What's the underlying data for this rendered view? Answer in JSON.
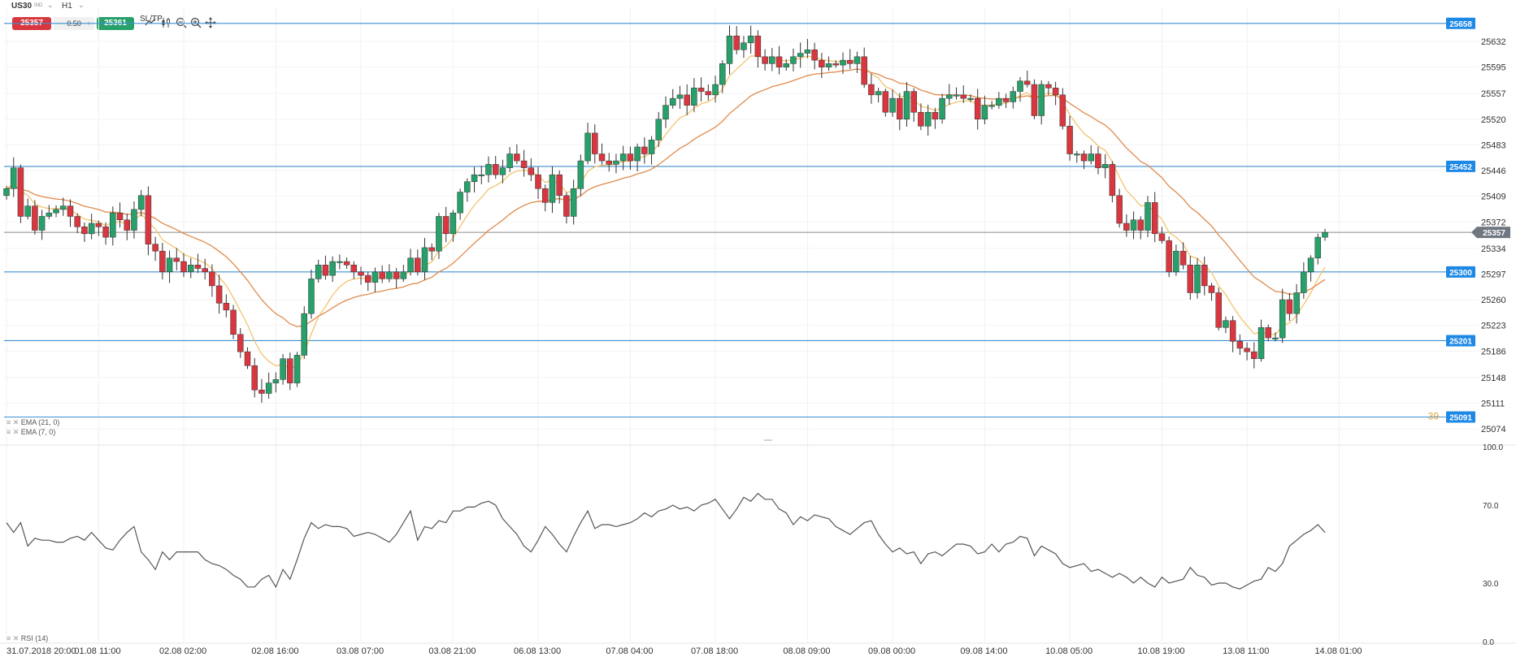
{
  "toolbar": {
    "symbol": "US30",
    "symbol_tag": "IND",
    "timeframe": "H1",
    "sell_price": "25357",
    "volume_minus": "−",
    "volume": "0.50",
    "volume_plus": "+",
    "buy_price": "25361",
    "sltp": "SL/TP",
    "icons": [
      "line-chart-icon",
      "candlestick-icon",
      "zoom-out-icon",
      "zoom-in-icon",
      "crosshair-move-icon"
    ]
  },
  "indicators": {
    "ema21": "EMA (21, 0)",
    "ema7": "EMA (7, 0)",
    "rsi": "RSI (14)"
  },
  "colors": {
    "bull": "#27a06a",
    "bear": "#d9373f",
    "ema_fast": "#f2c46e",
    "ema_slow": "#e08a4c",
    "level_line": "#3d8fd1",
    "level_tag": "#1e88e5",
    "price_tag": "#6f7780",
    "rsi_line": "#555555"
  },
  "chart_data": {
    "type": "candlestick",
    "instrument": "US30",
    "timeframe": "H1",
    "current_price": 25357,
    "price_axis_ticks": [
      25632,
      25595,
      25557,
      25520,
      25483,
      25446,
      25409,
      25372,
      25334,
      25297,
      25260,
      25223,
      25186,
      25148,
      25111,
      25074
    ],
    "horizontal_levels": [
      25658,
      25452,
      25300,
      25201,
      25091
    ],
    "level_labels": [
      "25658",
      "25452",
      "25300",
      "25201",
      "25091"
    ],
    "current_price_label": "25357",
    "overlay_text": "39",
    "ylim": [
      25060,
      25680
    ],
    "x_ticks": [
      "31.07.2018 20:00",
      "01.08 11:00",
      "02.08 02:00",
      "02.08 16:00",
      "03.08 07:00",
      "03.08 21:00",
      "06.08 13:00",
      "07.08 04:00",
      "07.08 18:00",
      "08.08 09:00",
      "09.08 00:00",
      "09.08 14:00",
      "10.08 05:00",
      "10.08 19:00",
      "13.08 11:00",
      "14.08 01:00"
    ],
    "close": [
      25420,
      25450,
      25380,
      25395,
      25360,
      25380,
      25385,
      25390,
      25395,
      25380,
      25365,
      25355,
      25370,
      25365,
      25350,
      25385,
      25375,
      25360,
      25390,
      25410,
      25340,
      25330,
      25300,
      25320,
      25315,
      25300,
      25310,
      25305,
      25300,
      25280,
      25255,
      25245,
      25210,
      25185,
      25165,
      25130,
      25125,
      25140,
      25145,
      25175,
      25140,
      25180,
      25240,
      25290,
      25310,
      25295,
      25315,
      25315,
      25310,
      25300,
      25295,
      25285,
      25300,
      25290,
      25300,
      25290,
      25300,
      25320,
      25300,
      25335,
      25330,
      25380,
      25355,
      25385,
      25415,
      25430,
      25440,
      25440,
      25455,
      25440,
      25450,
      25470,
      25460,
      25450,
      25440,
      25420,
      25400,
      25440,
      25410,
      25380,
      25420,
      25460,
      25500,
      25470,
      25460,
      25455,
      25460,
      25470,
      25460,
      25480,
      25470,
      25490,
      25520,
      25540,
      25550,
      25555,
      25540,
      25565,
      25560,
      25555,
      25570,
      25600,
      25640,
      25620,
      25630,
      25640,
      25610,
      25600,
      25610,
      25595,
      25600,
      25610,
      25615,
      25620,
      25605,
      25595,
      25600,
      25598,
      25605,
      25600,
      25610,
      25570,
      25555,
      25560,
      25530,
      25550,
      25520,
      25560,
      25530,
      25510,
      25530,
      25520,
      25550,
      25555,
      25555,
      25550,
      25550,
      25520,
      25540,
      25540,
      25550,
      25545,
      25560,
      25575,
      25570,
      25525,
      25570,
      25565,
      25555,
      25510,
      25470,
      25470,
      25460,
      25470,
      25450,
      25455,
      25410,
      25370,
      25360,
      25375,
      25360,
      25400,
      25355,
      25345,
      25300,
      25330,
      25310,
      25270,
      25310,
      25280,
      25270,
      25220,
      25230,
      25200,
      25190,
      25185,
      25175,
      25220,
      25205,
      25205,
      25260,
      25240,
      25270,
      25300,
      25320,
      25350,
      25357
    ],
    "ema7_end": 25292,
    "ema21_end": 25282,
    "rsi": {
      "name": "RSI (14)",
      "ylim": [
        0,
        100
      ],
      "levels": [
        70,
        30
      ],
      "ticks": [
        "100.0",
        "70.0",
        "30.0",
        "0.0"
      ],
      "values": [
        61,
        56,
        61,
        49,
        53,
        52,
        52,
        51,
        51,
        53,
        54,
        52,
        56,
        52,
        48,
        47,
        52,
        56,
        59,
        46,
        42,
        37,
        46,
        42,
        46,
        46,
        46,
        46,
        42,
        40,
        39,
        37,
        34,
        32,
        28,
        28,
        32,
        34,
        28,
        37,
        32,
        42,
        53,
        61,
        58,
        60,
        59,
        59,
        58,
        54,
        55,
        56,
        55,
        53,
        51,
        55,
        61,
        67,
        52,
        59,
        58,
        62,
        61,
        67,
        67,
        69,
        69,
        71,
        72,
        70,
        63,
        59,
        55,
        49,
        46,
        52,
        59,
        55,
        50,
        46,
        54,
        61,
        67,
        58,
        60,
        60,
        59,
        60,
        61,
        63,
        66,
        64,
        67,
        68,
        70,
        68,
        69,
        67,
        70,
        71,
        73,
        68,
        63,
        68,
        74,
        72,
        76,
        73,
        73,
        68,
        66,
        60,
        64,
        62,
        65,
        64,
        63,
        59,
        57,
        55,
        58,
        61,
        62,
        55,
        50,
        46,
        48,
        45,
        46,
        40,
        45,
        46,
        44,
        47,
        50,
        50,
        49,
        45,
        46,
        50,
        46,
        50,
        51,
        54,
        53,
        44,
        49,
        47,
        45,
        40,
        38,
        39,
        40,
        36,
        37,
        35,
        33,
        35,
        33,
        30,
        33,
        30,
        28,
        33,
        30,
        31,
        32,
        38,
        34,
        33,
        29,
        30,
        30,
        28,
        27,
        29,
        31,
        32,
        38,
        36,
        40,
        49,
        52,
        55,
        57,
        60,
        56
      ]
    }
  }
}
